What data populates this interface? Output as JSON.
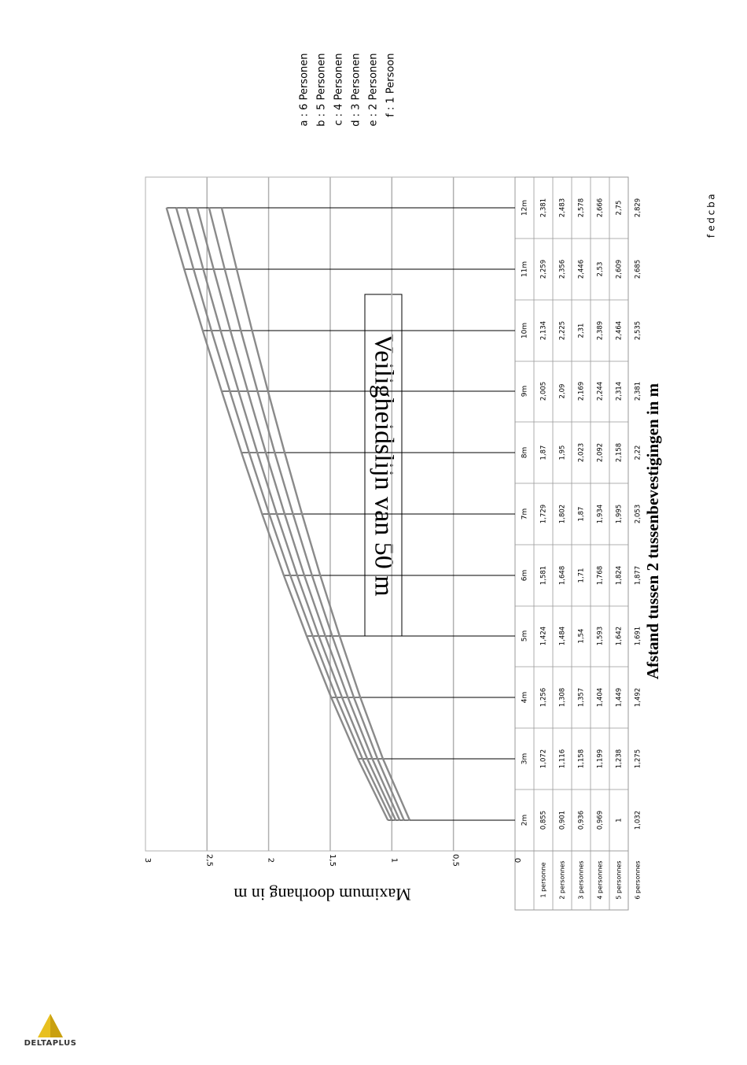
{
  "title": "Veiligheidslijn van 50 m",
  "xaxis_title": "Afstand tussen 2 tussenbevestigingen in m",
  "yaxis_title": "Maximum doorhang in m",
  "legend": [
    "a : 6 Personen",
    "b : 5 Personen",
    "c : 4 Personen",
    "d : 3 Personen",
    "e : 2 Personen",
    "f : 1 Persoon"
  ],
  "logo": {
    "text": "DELTAPLUS",
    "color": "#e8c020"
  },
  "colors": {
    "series_line": "#8a8a8a",
    "grid": "#b0b0b0",
    "table_border": "#999999"
  },
  "chart_data": {
    "type": "line",
    "orientation": "rotated 90° clockwise; y axis runs right-to-left, x axis runs bottom-to-top",
    "xlabel": "Afstand tussen 2 tussenbevestigingen in m",
    "ylabel": "Maximum doorhang in m",
    "ylim": [
      0,
      3
    ],
    "y_ticks": [
      "0",
      "0,5",
      "1",
      "1,5",
      "2",
      "2,5",
      "3"
    ],
    "grid": true,
    "categories": [
      "2m",
      "3m",
      "4m",
      "5m",
      "6m",
      "7m",
      "8m",
      "9m",
      "10m",
      "11m",
      "12m"
    ],
    "series": [
      {
        "name": "1 personne",
        "curve_label": "f",
        "values": [
          0.855,
          1.072,
          1.256,
          1.424,
          1.581,
          1.729,
          1.87,
          2.005,
          2.134,
          2.259,
          2.381
        ],
        "display": [
          "0,855",
          "1,072",
          "1,256",
          "1,424",
          "1,581",
          "1,729",
          "1,87",
          "2,005",
          "2,134",
          "2,259",
          "2,381"
        ]
      },
      {
        "name": "2 personnes",
        "curve_label": "e",
        "values": [
          0.901,
          1.116,
          1.308,
          1.484,
          1.648,
          1.802,
          1.95,
          2.09,
          2.225,
          2.356,
          2.483
        ],
        "display": [
          "0,901",
          "1,116",
          "1,308",
          "1,484",
          "1,648",
          "1,802",
          "1,95",
          "2,09",
          "2,225",
          "2,356",
          "2,483"
        ]
      },
      {
        "name": "3 personnes",
        "curve_label": "d",
        "values": [
          0.936,
          1.158,
          1.357,
          1.54,
          1.71,
          1.87,
          2.023,
          2.169,
          2.31,
          2.446,
          2.578
        ],
        "display": [
          "0,936",
          "1,158",
          "1,357",
          "1,54",
          "1,71",
          "1,87",
          "2,023",
          "2,169",
          "2,31",
          "2,446",
          "2,578"
        ]
      },
      {
        "name": "4 personnes",
        "curve_label": "c",
        "values": [
          0.969,
          1.199,
          1.404,
          1.593,
          1.768,
          1.934,
          2.092,
          2.244,
          2.389,
          2.53,
          2.666
        ],
        "display": [
          "0,969",
          "1,199",
          "1,404",
          "1,593",
          "1,768",
          "1,934",
          "2,092",
          "2,244",
          "2,389",
          "2,53",
          "2,666"
        ]
      },
      {
        "name": "5 personnes",
        "curve_label": "b",
        "values": [
          1,
          1.238,
          1.449,
          1.642,
          1.824,
          1.995,
          2.158,
          2.314,
          2.464,
          2.609,
          2.75
        ],
        "display": [
          "1",
          "1,238",
          "1,449",
          "1,642",
          "1,824",
          "1,995",
          "2,158",
          "2,314",
          "2,464",
          "2,609",
          "2,75"
        ]
      },
      {
        "name": "6 personnes",
        "curve_label": "a",
        "values": [
          1.032,
          1.275,
          1.492,
          1.691,
          1.877,
          2.053,
          2.22,
          2.381,
          2.535,
          2.685,
          2.829
        ],
        "display": [
          "1,032",
          "1,275",
          "1,492",
          "1,691",
          "1,877",
          "2,053",
          "2,22",
          "2,381",
          "2,535",
          "2,685",
          "2,829"
        ]
      }
    ]
  }
}
